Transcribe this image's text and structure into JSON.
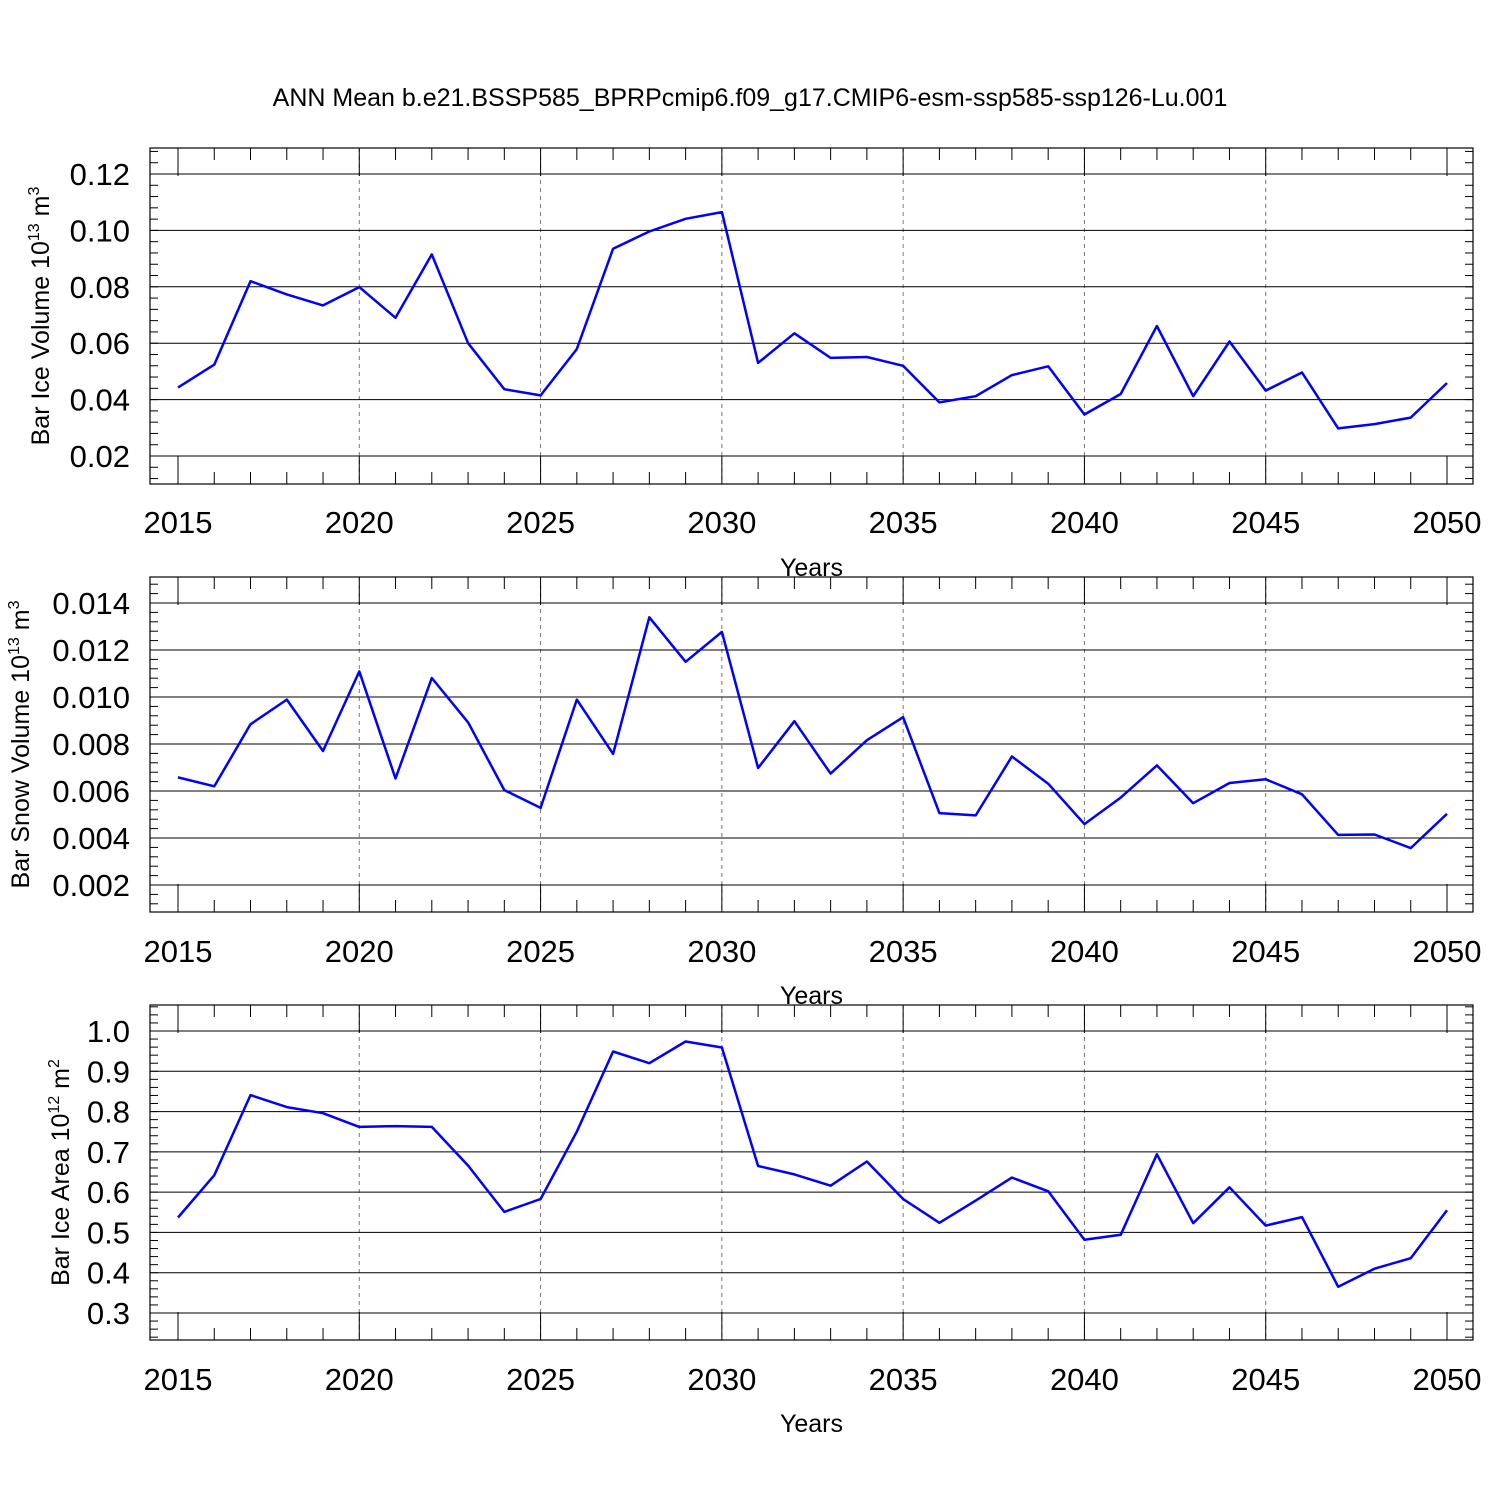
{
  "title": "ANN Mean b.e21.BSSP585_BPRPcmip6.f09_g17.CMIP6-esm-ssp585-ssp126-Lu.001",
  "line_color": "#0000ff",
  "chart_data": [
    {
      "type": "line",
      "xlabel": "Years",
      "ylabel": {
        "prefix": "Bar Ice Volume 10",
        "exp": "13",
        "unit": " m",
        "unit_exp": "3"
      },
      "xlim": [
        2015,
        2050
      ],
      "ylim": [
        0.02,
        0.12
      ],
      "xticks": [
        2015,
        2020,
        2025,
        2030,
        2035,
        2040,
        2045,
        2050
      ],
      "yticks": [
        "0.02",
        "0.04",
        "0.06",
        "0.08",
        "0.10",
        "0.12"
      ],
      "grid": "vertical dashed at labeled years",
      "series": [
        {
          "x": [
            2015,
            2016,
            2017,
            2018,
            2019,
            2020,
            2021,
            2022,
            2023,
            2024,
            2025,
            2026,
            2027,
            2028,
            2029,
            2030,
            2031,
            2032,
            2033,
            2034,
            2035,
            2036,
            2037,
            2038,
            2039,
            2040,
            2041,
            2042,
            2043,
            2044,
            2045,
            2046,
            2047,
            2048,
            2049,
            2050
          ],
          "values": [
            0.0443,
            0.0524,
            0.082,
            0.0773,
            0.0734,
            0.0799,
            0.069,
            0.0915,
            0.06,
            0.0437,
            0.0415,
            0.0579,
            0.0935,
            0.0996,
            0.1041,
            0.1065,
            0.053,
            0.0635,
            0.0548,
            0.0551,
            0.052,
            0.039,
            0.0412,
            0.0487,
            0.0518,
            0.0347,
            0.042,
            0.0661,
            0.0412,
            0.0606,
            0.0432,
            0.0496,
            0.0298,
            0.0313,
            0.0336,
            0.0459
          ]
        }
      ]
    },
    {
      "type": "line",
      "xlabel": "Years",
      "ylabel": {
        "prefix": "Bar Snow Volume 10",
        "exp": "13",
        "unit": " m",
        "unit_exp": "3"
      },
      "xlim": [
        2015,
        2050
      ],
      "ylim": [
        0.002,
        0.014
      ],
      "xticks": [
        2015,
        2020,
        2025,
        2030,
        2035,
        2040,
        2045,
        2050
      ],
      "yticks": [
        "0.002",
        "0.004",
        "0.006",
        "0.008",
        "0.010",
        "0.012",
        "0.014"
      ],
      "grid": "vertical dashed at labeled years",
      "series": [
        {
          "x": [
            2015,
            2016,
            2017,
            2018,
            2019,
            2020,
            2021,
            2022,
            2023,
            2024,
            2025,
            2026,
            2027,
            2028,
            2029,
            2030,
            2031,
            2032,
            2033,
            2034,
            2035,
            2036,
            2037,
            2038,
            2039,
            2040,
            2041,
            2042,
            2043,
            2044,
            2045,
            2046,
            2047,
            2048,
            2049,
            2050
          ],
          "values": [
            0.00658,
            0.0062,
            0.00884,
            0.00989,
            0.0077,
            0.01109,
            0.00653,
            0.01081,
            0.00892,
            0.00604,
            0.00528,
            0.00989,
            0.00758,
            0.01339,
            0.0115,
            0.01277,
            0.00698,
            0.00897,
            0.00674,
            0.00816,
            0.00914,
            0.00506,
            0.00496,
            0.00747,
            0.00631,
            0.00459,
            0.00572,
            0.00709,
            0.00548,
            0.00634,
            0.0065,
            0.00586,
            0.00413,
            0.00415,
            0.00357,
            0.00503
          ]
        }
      ]
    },
    {
      "type": "line",
      "xlabel": "Years",
      "ylabel": {
        "prefix": "Bar Ice Area 10",
        "exp": "12",
        "unit": " m",
        "unit_exp": "2"
      },
      "xlim": [
        2015,
        2050
      ],
      "ylim": [
        0.3,
        1.0
      ],
      "xticks": [
        2015,
        2020,
        2025,
        2030,
        2035,
        2040,
        2045,
        2050
      ],
      "yticks": [
        "0.3",
        "0.4",
        "0.5",
        "0.6",
        "0.7",
        "0.8",
        "0.9",
        "1.0"
      ],
      "grid": "vertical dashed at labeled years",
      "series": [
        {
          "x": [
            2015,
            2016,
            2017,
            2018,
            2019,
            2020,
            2021,
            2022,
            2023,
            2024,
            2025,
            2026,
            2027,
            2028,
            2029,
            2030,
            2031,
            2032,
            2033,
            2034,
            2035,
            2036,
            2037,
            2038,
            2039,
            2040,
            2041,
            2042,
            2043,
            2044,
            2045,
            2046,
            2047,
            2048,
            2049,
            2050
          ],
          "values": [
            0.537,
            0.642,
            0.841,
            0.811,
            0.796,
            0.762,
            0.764,
            0.762,
            0.666,
            0.551,
            0.583,
            0.75,
            0.949,
            0.92,
            0.974,
            0.959,
            0.665,
            0.644,
            0.616,
            0.676,
            0.583,
            0.524,
            0.579,
            0.636,
            0.602,
            0.482,
            0.494,
            0.694,
            0.523,
            0.612,
            0.517,
            0.538,
            0.365,
            0.41,
            0.436,
            0.555
          ]
        }
      ]
    }
  ]
}
